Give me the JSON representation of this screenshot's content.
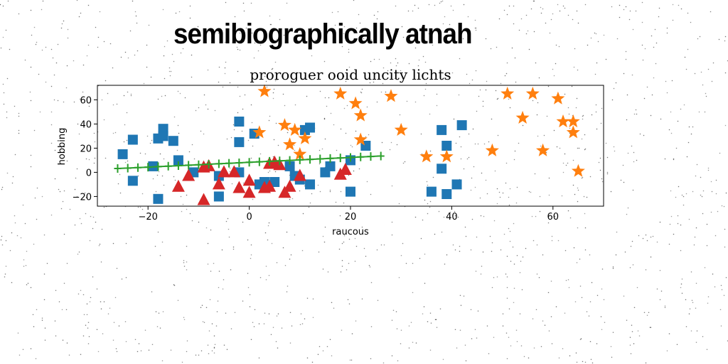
{
  "page": {
    "heading": "semibiographically atnah"
  },
  "chart_data": {
    "type": "scatter",
    "title": "proroguer ooid uncity lichts",
    "xlabel": "raucous",
    "ylabel": "hobbing",
    "xlim": [
      -30,
      70
    ],
    "ylim": [
      -28,
      72
    ],
    "xticks": [
      -20,
      0,
      20,
      40,
      60
    ],
    "yticks": [
      -20,
      0,
      20,
      40,
      60
    ],
    "grid": false,
    "series": [
      {
        "marker": "square",
        "color": "#1f77b4",
        "points": [
          [
            -25,
            15
          ],
          [
            -23,
            27
          ],
          [
            -23,
            -7
          ],
          [
            -18,
            28
          ],
          [
            -17,
            36
          ],
          [
            -17,
            30
          ],
          [
            -15,
            26
          ],
          [
            -19,
            5
          ],
          [
            -18,
            -22
          ],
          [
            -14,
            10
          ],
          [
            -11,
            0
          ],
          [
            -6,
            -3
          ],
          [
            -6,
            -20
          ],
          [
            -2,
            42
          ],
          [
            -2,
            25
          ],
          [
            -2,
            0
          ],
          [
            1,
            32
          ],
          [
            2,
            -10
          ],
          [
            3,
            -8
          ],
          [
            5,
            -8
          ],
          [
            8,
            5
          ],
          [
            9,
            -3
          ],
          [
            10,
            -6
          ],
          [
            11,
            35
          ],
          [
            12,
            37
          ],
          [
            12,
            -10
          ],
          [
            15,
            0
          ],
          [
            16,
            5
          ],
          [
            20,
            10
          ],
          [
            20,
            -16
          ],
          [
            23,
            22
          ],
          [
            36,
            -16
          ],
          [
            38,
            35
          ],
          [
            38,
            3
          ],
          [
            39,
            22
          ],
          [
            39,
            -18
          ],
          [
            41,
            -10
          ],
          [
            42,
            39
          ]
        ]
      },
      {
        "marker": "star",
        "color": "#ff7f0e",
        "points": [
          [
            3,
            67
          ],
          [
            18,
            65
          ],
          [
            21,
            57
          ],
          [
            22,
            47
          ],
          [
            28,
            63
          ],
          [
            2,
            33
          ],
          [
            7,
            39
          ],
          [
            8,
            23
          ],
          [
            9,
            35
          ],
          [
            10,
            15
          ],
          [
            11,
            28
          ],
          [
            22,
            27
          ],
          [
            30,
            35
          ],
          [
            35,
            13
          ],
          [
            39,
            13
          ],
          [
            48,
            18
          ],
          [
            51,
            65
          ],
          [
            54,
            45
          ],
          [
            56,
            65
          ],
          [
            58,
            18
          ],
          [
            61,
            61
          ],
          [
            62,
            42
          ],
          [
            64,
            42
          ],
          [
            64,
            33
          ],
          [
            65,
            1
          ]
        ]
      },
      {
        "marker": "triangle",
        "color": "#d62728",
        "points": [
          [
            -9,
            4
          ],
          [
            -8,
            5
          ],
          [
            -5,
            0
          ],
          [
            -3,
            0
          ],
          [
            0,
            -7
          ],
          [
            4,
            7
          ],
          [
            5,
            8
          ],
          [
            6,
            6
          ],
          [
            -12,
            -3
          ],
          [
            -14,
            -12
          ],
          [
            -9,
            -23
          ],
          [
            -6,
            -10
          ],
          [
            -2,
            -13
          ],
          [
            0,
            -17
          ],
          [
            3,
            -13
          ],
          [
            4,
            -12
          ],
          [
            7,
            -17
          ],
          [
            8,
            -12
          ],
          [
            10,
            -3
          ],
          [
            18,
            -2
          ],
          [
            19,
            2
          ]
        ]
      },
      {
        "marker": "plus-line",
        "color": "#2ca02c",
        "points": [
          [
            -26,
            3.2
          ],
          [
            -24,
            3.5
          ],
          [
            -22,
            3.9
          ],
          [
            -20,
            4.3
          ],
          [
            -18,
            4.7
          ],
          [
            -16,
            5.1
          ],
          [
            -14,
            5.5
          ],
          [
            -12,
            5.9
          ],
          [
            -10,
            6.3
          ],
          [
            -8,
            6.7
          ],
          [
            -6,
            7.1
          ],
          [
            -4,
            7.5
          ],
          [
            -2,
            7.9
          ],
          [
            0,
            8.3
          ],
          [
            2,
            8.7
          ],
          [
            4,
            9.1
          ],
          [
            6,
            9.5
          ],
          [
            8,
            9.9
          ],
          [
            10,
            10.3
          ],
          [
            12,
            10.7
          ],
          [
            14,
            11.1
          ],
          [
            16,
            11.5
          ],
          [
            18,
            11.9
          ],
          [
            20,
            12.3
          ],
          [
            22,
            12.7
          ],
          [
            24,
            13.1
          ],
          [
            26,
            13.5
          ]
        ]
      }
    ]
  }
}
